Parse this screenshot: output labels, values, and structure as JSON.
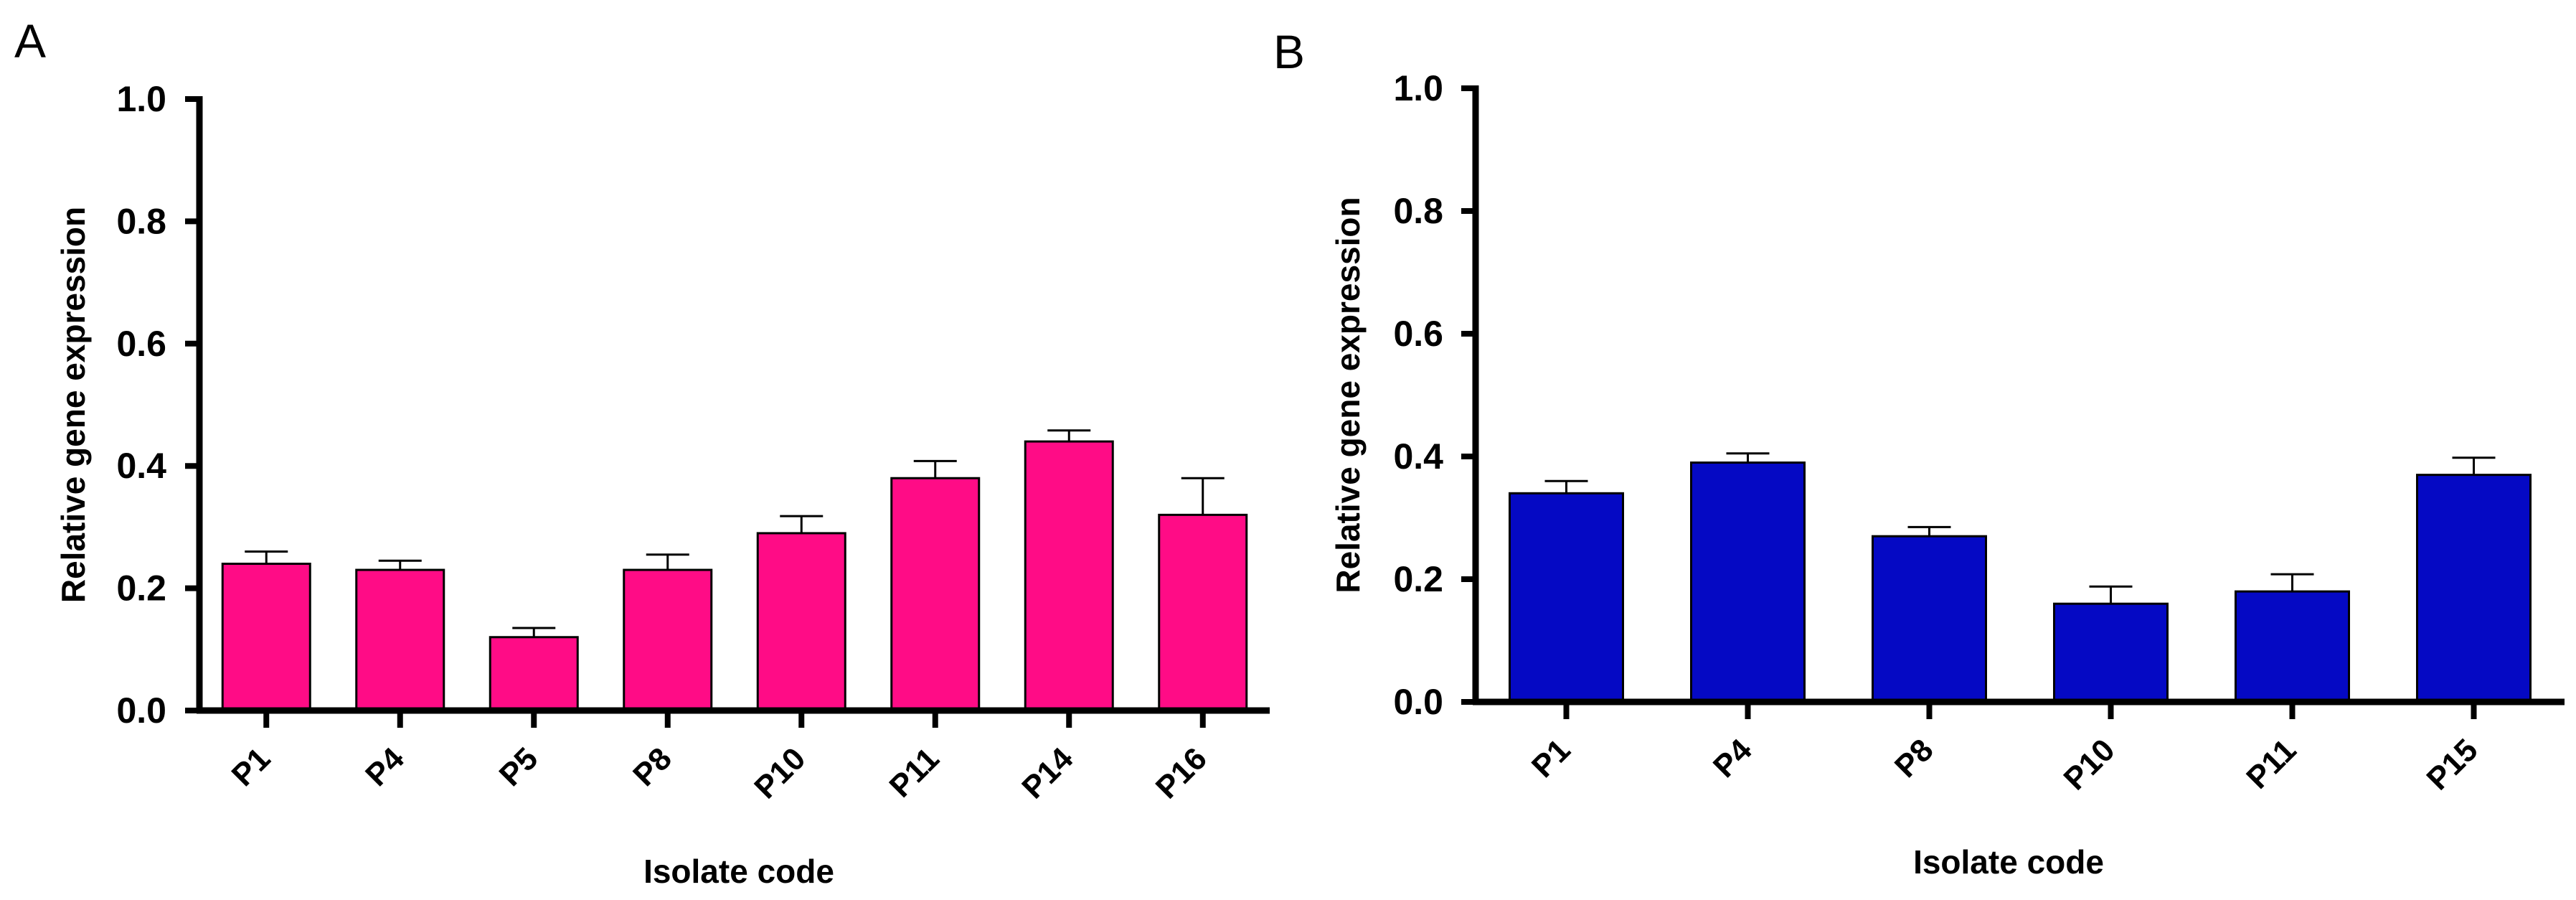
{
  "chart_data": [
    {
      "panel": "A",
      "type": "bar",
      "categories": [
        "P1",
        "P4",
        "P5",
        "P8",
        "P10",
        "P11",
        "P14",
        "P16"
      ],
      "values": [
        0.24,
        0.23,
        0.12,
        0.23,
        0.29,
        0.38,
        0.44,
        0.32
      ],
      "errors": [
        0.02,
        0.015,
        0.015,
        0.025,
        0.028,
        0.028,
        0.018,
        0.06
      ],
      "color": "#FF0C86",
      "xlabel": "Isolate code",
      "ylabel": "Relative gene expression",
      "ylim": [
        0,
        1.0
      ],
      "yticks": [
        "0.0",
        "0.2",
        "0.4",
        "0.6",
        "0.8",
        "1.0"
      ]
    },
    {
      "panel": "B",
      "type": "bar",
      "categories": [
        "P1",
        "P4",
        "P8",
        "P10",
        "P11",
        "P15"
      ],
      "values": [
        0.34,
        0.39,
        0.27,
        0.16,
        0.18,
        0.37
      ],
      "errors": [
        0.02,
        0.015,
        0.015,
        0.028,
        0.028,
        0.028
      ],
      "color": "#0509C4",
      "xlabel": "Isolate code",
      "ylabel": "Relative gene expression",
      "ylim": [
        0,
        1.0
      ],
      "yticks": [
        "0.0",
        "0.2",
        "0.4",
        "0.6",
        "0.8",
        "1.0"
      ]
    }
  ]
}
